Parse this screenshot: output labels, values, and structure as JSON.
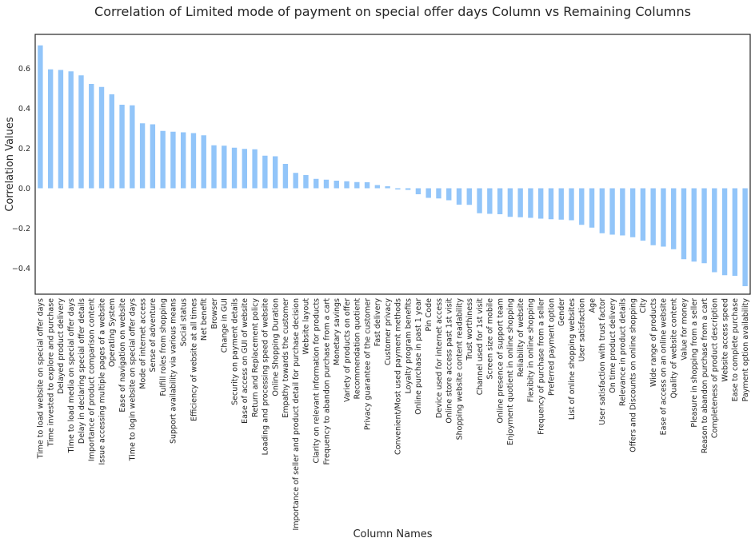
{
  "chart_data": {
    "type": "bar",
    "title": "Correlation of Limited mode of payment on special offer days Column vs Remaining Columns",
    "xlabel": "Column Names",
    "ylabel": "Correlation Values",
    "ylim": [
      -0.53,
      0.77
    ],
    "yticks": [
      0.6,
      0.4,
      0.2,
      0.0,
      -0.2,
      -0.4
    ],
    "ytick_labels": [
      "0.6",
      "0.4",
      "0.2",
      "0.0",
      "−0.2",
      "−0.4"
    ],
    "grid": false,
    "bar_color": "#92c5f9",
    "categories": [
      "Time to load website on special offer days",
      "Time invested to explore and purchase",
      "Delayed product delivery",
      "Time to load media on special offer days",
      "Delay in declaring special offer details",
      "Importance of product comparison content",
      "Issue accessing multiple pages of a website",
      "Operating System",
      "Ease of navigation on website",
      "Time to login website on special offer days",
      "Mode of internet access",
      "Sense of adventure",
      "Fulfill roles from shopping",
      "Support availability via various means",
      "Social status",
      "Efficiency of website at all times",
      "Net benefit",
      "Browser",
      "Change in GUI",
      "Security on payment details",
      "Ease of access on GUI of website",
      "Return and Replacement policy",
      "Loading and processing speed of website",
      "Online Shopping Duration",
      "Empathy towards the customer",
      "Importance of seller and product detail for purchase decision",
      "Website layout",
      "Clarity on relevant information for products",
      "Frequency to abandon purchase from a cart",
      "Monetary savings",
      "Variety of products on offer",
      "Recommendation quotient",
      "Privacy guarantee of the customer",
      "Fast delivery",
      "Customer privacy",
      "Convenient/Most used payment methods",
      "Loyalty program benefits",
      "Online purchase in past 1 year",
      "Pin Code",
      "Device used for internet access",
      "Online store access past 1st visit",
      "Shopping website content readability",
      "Trust worthiness",
      "Channel used for 1st visit",
      "Screen size of mobile",
      "Online presence of support team",
      "Enjoyment quotient in online shopping",
      "Reliability of website",
      "Flexibity in online shopping",
      "Frequency of purchase from a seller",
      "Preferred payment option",
      "Gender",
      "List of online shopping websites",
      "User satisfaction",
      "Age",
      "User satisfaction with trust factor",
      "On time product delivery",
      "Relevance in product details",
      "Offers and Discounts on online shopping",
      "City",
      "Wide range of products",
      "Ease of access on an online website",
      "Quality of website content",
      "Value for money",
      "Pleasure in shopping from a seller",
      "Reason to abandon purchase from a cart",
      "Completeness of product description",
      "Website access speed",
      "Ease to complete purchase",
      "Payment option availability"
    ],
    "values": [
      0.715,
      0.595,
      0.592,
      0.585,
      0.565,
      0.522,
      0.507,
      0.47,
      0.418,
      0.415,
      0.325,
      0.32,
      0.287,
      0.283,
      0.28,
      0.276,
      0.265,
      0.215,
      0.213,
      0.203,
      0.197,
      0.195,
      0.163,
      0.16,
      0.122,
      0.077,
      0.066,
      0.047,
      0.043,
      0.038,
      0.035,
      0.031,
      0.03,
      0.016,
      0.01,
      -0.006,
      -0.008,
      -0.03,
      -0.048,
      -0.051,
      -0.06,
      -0.082,
      -0.083,
      -0.125,
      -0.128,
      -0.13,
      -0.143,
      -0.145,
      -0.148,
      -0.152,
      -0.155,
      -0.157,
      -0.16,
      -0.183,
      -0.197,
      -0.225,
      -0.232,
      -0.236,
      -0.245,
      -0.262,
      -0.285,
      -0.292,
      -0.305,
      -0.355,
      -0.367,
      -0.375,
      -0.42,
      -0.435,
      -0.438,
      -0.49
    ]
  }
}
